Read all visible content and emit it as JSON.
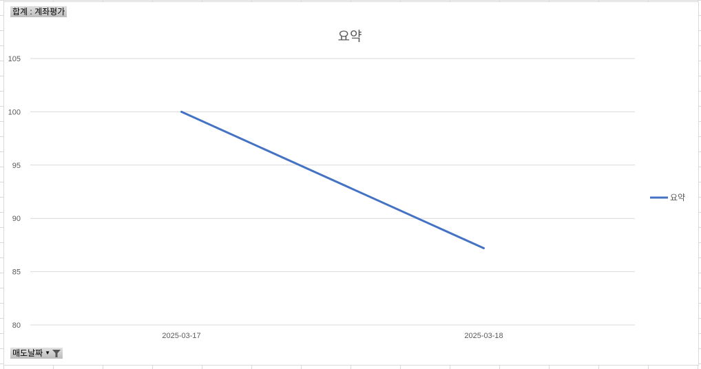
{
  "pivot": {
    "value_field_button": "합계 : 계좌평가",
    "axis_field_button": "매도날짜"
  },
  "colors": {
    "series": "#4472C4",
    "grid": "#d9d9d9",
    "text": "#595959"
  },
  "icons": {
    "axis_field": [
      "dropdown-arrow-icon",
      "filter-icon"
    ]
  },
  "chart_data": {
    "type": "line",
    "title": "요약",
    "categories": [
      "2025-03-17",
      "2025-03-18"
    ],
    "series": [
      {
        "name": "요약",
        "values": [
          100,
          87.2
        ]
      }
    ],
    "ylim": [
      80,
      105
    ],
    "yticks": [
      80,
      85,
      90,
      95,
      100,
      105
    ],
    "grid": true,
    "legend": "right"
  }
}
